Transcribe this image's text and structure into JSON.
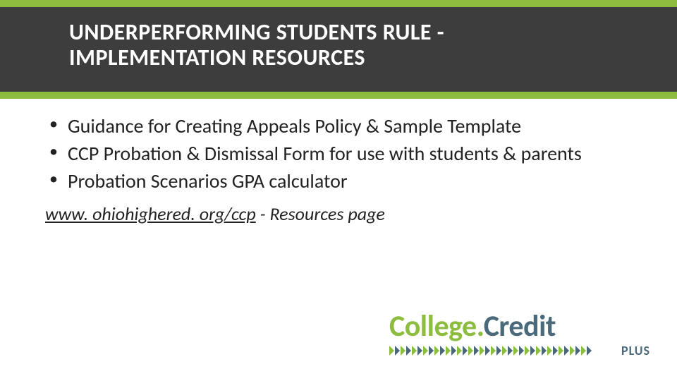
{
  "header": {
    "title_line1": "UNDERPERFORMING STUDENTS RULE -",
    "title_line2": "IMPLEMENTATION RESOURCES",
    "band_color": "#8cbd3f",
    "inner_color": "#3d3d3d",
    "title_color": "#ffffff",
    "title_fontsize": 32
  },
  "bullets": [
    "Guidance for Creating Appeals Policy & Sample Template",
    "CCP Probation & Dismissal Form for use with students & parents",
    "Probation Scenarios GPA calculator"
  ],
  "bullet_fontsize": 28,
  "bullet_color": "#222222",
  "link": {
    "url": "www. ohiohighered. org/ccp",
    "suffix": " - Resources page",
    "fontsize": 26
  },
  "logo": {
    "word1": "College",
    "word2": "Credit",
    "dot": ".",
    "plus": "PLUS",
    "color_green": "#8cbd3f",
    "color_blue": "#4a6a7c"
  },
  "background_color": "#5b5b5b",
  "content_background": "#ffffff"
}
